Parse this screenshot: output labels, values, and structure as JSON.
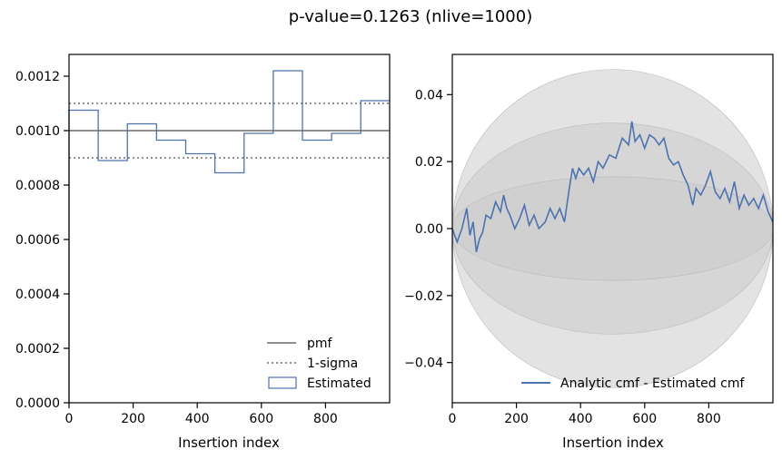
{
  "figure": {
    "suptitle": "p-value=0.1263 (nlive=1000)"
  },
  "colors": {
    "estimated": "#4c72b0",
    "pmf": "#808080",
    "sigma": "#808080",
    "band": "#cccccc",
    "axis": "#000000"
  },
  "chart_data": [
    {
      "type": "line",
      "title": "",
      "xlabel": "Insertion index",
      "ylabel": "",
      "xlim": [
        0,
        1000
      ],
      "ylim": [
        0,
        0.00128
      ],
      "xticks": [
        0,
        200,
        400,
        600,
        800
      ],
      "xtick_labels": [
        "0",
        "200",
        "400",
        "600",
        "800"
      ],
      "yticks": [
        0,
        0.0002,
        0.0004,
        0.0006,
        0.0008,
        0.001,
        0.0012
      ],
      "ytick_labels": [
        "0.0000",
        "0.0002",
        "0.0004",
        "0.0006",
        "0.0008",
        "0.0010",
        "0.0012"
      ],
      "pmf": 0.001,
      "sigma_upper": 0.0011,
      "sigma_lower": 0.0009,
      "histogram": {
        "bin_edges": [
          0,
          91,
          182,
          273,
          364,
          455,
          546,
          637,
          728,
          819,
          910,
          1000
        ],
        "values": [
          0.001075,
          0.00089,
          0.001025,
          0.000965,
          0.000915,
          0.000845,
          0.00099,
          0.00122,
          0.000965,
          0.00099,
          0.00111
        ]
      },
      "legend": {
        "position": "lower-right",
        "entries": [
          "pmf",
          "1-sigma",
          "Estimated"
        ]
      }
    },
    {
      "type": "line",
      "title": "",
      "xlabel": "Insertion index",
      "ylabel": "",
      "xlim": [
        0,
        1000
      ],
      "ylim": [
        -0.052,
        0.052
      ],
      "xticks": [
        0,
        200,
        400,
        600,
        800
      ],
      "xtick_labels": [
        "0",
        "200",
        "400",
        "600",
        "800"
      ],
      "yticks": [
        -0.04,
        -0.02,
        0.0,
        0.02,
        0.04
      ],
      "ytick_labels": [
        "−0.04",
        "−0.02",
        "0.00",
        "0.02",
        "0.04"
      ],
      "bands": [
        "1-sigma",
        "2-sigma",
        "3-sigma"
      ],
      "series": [
        {
          "name": "Analytic cmf - Estimated cmf",
          "x": [
            0,
            15,
            30,
            45,
            55,
            65,
            75,
            85,
            95,
            105,
            120,
            135,
            150,
            160,
            170,
            180,
            195,
            210,
            225,
            240,
            255,
            270,
            290,
            305,
            320,
            335,
            350,
            365,
            375,
            385,
            395,
            410,
            425,
            440,
            455,
            470,
            490,
            510,
            530,
            550,
            560,
            570,
            585,
            600,
            615,
            630,
            645,
            660,
            675,
            690,
            705,
            720,
            735,
            750,
            760,
            775,
            790,
            805,
            820,
            835,
            850,
            865,
            880,
            895,
            910,
            925,
            940,
            955,
            970,
            985,
            1000
          ],
          "y": [
            0.0,
            -0.004,
            0.0,
            0.006,
            -0.002,
            0.002,
            -0.007,
            -0.003,
            -0.001,
            0.004,
            0.003,
            0.008,
            0.005,
            0.01,
            0.006,
            0.004,
            0.0,
            0.003,
            0.007,
            0.001,
            0.004,
            0.0,
            0.002,
            0.006,
            0.003,
            0.006,
            0.002,
            0.012,
            0.018,
            0.015,
            0.018,
            0.016,
            0.018,
            0.014,
            0.02,
            0.018,
            0.022,
            0.021,
            0.027,
            0.025,
            0.032,
            0.026,
            0.028,
            0.024,
            0.028,
            0.027,
            0.025,
            0.027,
            0.021,
            0.019,
            0.02,
            0.016,
            0.013,
            0.007,
            0.012,
            0.01,
            0.013,
            0.017,
            0.011,
            0.009,
            0.012,
            0.008,
            0.014,
            0.006,
            0.01,
            0.007,
            0.009,
            0.006,
            0.01,
            0.005,
            0.002
          ]
        }
      ],
      "legend": {
        "position": "lower-right",
        "entries": [
          "Analytic cmf - Estimated cmf"
        ]
      }
    }
  ]
}
